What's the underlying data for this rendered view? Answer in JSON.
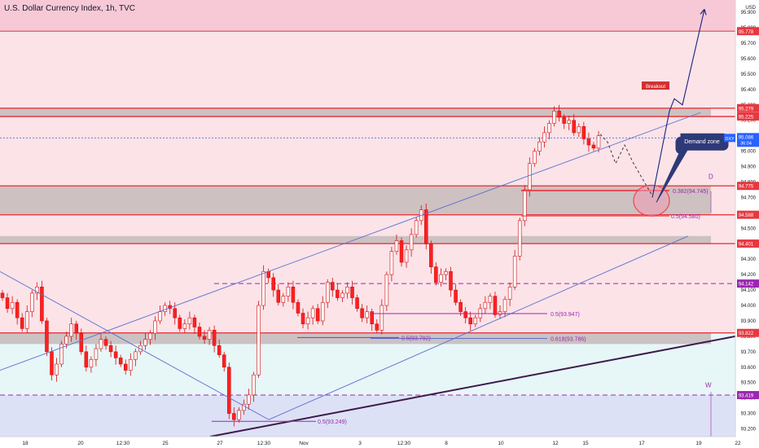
{
  "header": {
    "title": "U.S. Dollar Currency Index, 1h, TVC"
  },
  "colors": {
    "zone_pink": "#f7c9d7",
    "zone_light_pink": "#fbe3e8",
    "zone_gray": "#c8bcbd",
    "zone_blue": "#dde1f5",
    "zone_cyan": "#e7f6f7",
    "red_line": "#e8373f",
    "dark_red": "#8b1330",
    "purple": "#9c27b0",
    "blue_line": "#5b6fcf",
    "navy_line": "#3d1a4a",
    "candle_up": "#ffffff",
    "candle_down": "#ff2020",
    "candle_border": "#d01010",
    "text": "#131722"
  },
  "chart_data": {
    "type": "candlestick",
    "title": "U.S. Dollar Currency Index, 1h, TVC",
    "axis_currency": "USD",
    "ylim": [
      93.15,
      95.98
    ],
    "y_ticks": [
      "95.900",
      "95.800",
      "95.700",
      "95.600",
      "95.500",
      "95.400",
      "95.300",
      "95.200",
      "95.100",
      "95.000",
      "94.900",
      "94.800",
      "94.700",
      "94.600",
      "94.500",
      "94.400",
      "94.300",
      "94.200",
      "94.100",
      "94.000",
      "93.900",
      "93.800",
      "93.700",
      "93.600",
      "93.500",
      "93.400",
      "93.300",
      "93.200"
    ],
    "x_labels": [
      "18",
      "20",
      "12:30",
      "25",
      "27",
      "12:30",
      "Nov",
      "3",
      "12:30",
      "8",
      "10",
      "12",
      "15",
      "17",
      "19",
      "22"
    ],
    "price_tags": [
      {
        "label": "95.778",
        "value": 95.778,
        "kind": "red"
      },
      {
        "label": "95.279",
        "value": 95.279,
        "kind": "red"
      },
      {
        "label": "95.225",
        "value": 95.225,
        "kind": "red"
      },
      {
        "label": "94.775",
        "value": 94.775,
        "kind": "red"
      },
      {
        "label": "94.588",
        "value": 94.588,
        "kind": "red"
      },
      {
        "label": "94.401",
        "value": 94.401,
        "kind": "red"
      },
      {
        "label": "94.142",
        "value": 94.142,
        "kind": "purple"
      },
      {
        "label": "93.822",
        "value": 93.822,
        "kind": "red"
      },
      {
        "label": "93.419",
        "value": 93.419,
        "kind": "purple"
      }
    ],
    "current": {
      "symbol": "DXY",
      "price": "95.086",
      "countdown": "36:04",
      "value": 95.086
    },
    "zones": [
      {
        "name": "supply-zone",
        "from": 95.778,
        "to": 95.98,
        "color": "pink"
      },
      {
        "name": "upper-resistance",
        "from": 95.225,
        "to": 95.279,
        "color": "gray"
      },
      {
        "name": "demand-band",
        "from": 94.588,
        "to": 94.775,
        "color": "gray"
      },
      {
        "name": "mid-support",
        "from": 94.401,
        "to": 94.45,
        "color": "gray"
      },
      {
        "name": "low-support",
        "from": 93.75,
        "to": 93.822,
        "color": "gray"
      },
      {
        "name": "bottom-zone",
        "from": 93.15,
        "to": 93.419,
        "color": "blue"
      }
    ],
    "fib_labels": [
      {
        "text": "0.382(94.745)",
        "value": 94.745
      },
      {
        "text": "0.5(94.580)",
        "value": 94.58
      },
      {
        "text": "0.5(93.947)",
        "value": 93.947
      },
      {
        "text": "0.5(93.792)",
        "value": 93.792
      },
      {
        "text": "0.618(93.786)",
        "value": 93.786
      },
      {
        "text": "0.5(93.249)",
        "value": 93.249
      }
    ],
    "annotations": {
      "breakout": "Breakout",
      "demand": "Demand zone",
      "d_label": "D",
      "w_label": "W"
    },
    "series": [
      {
        "name": "DXY",
        "closes": [
          94.05,
          93.98,
          94.02,
          93.92,
          93.85,
          93.96,
          94.08,
          94.12,
          93.9,
          93.7,
          93.55,
          93.62,
          93.75,
          93.8,
          93.88,
          93.82,
          93.7,
          93.6,
          93.65,
          93.72,
          93.78,
          93.74,
          93.7,
          93.66,
          93.62,
          93.58,
          93.65,
          93.7,
          93.74,
          93.78,
          93.82,
          93.9,
          93.96,
          94.0,
          93.98,
          93.92,
          93.85,
          93.88,
          93.92,
          93.86,
          93.8,
          93.78,
          93.84,
          93.74,
          93.68,
          93.6,
          93.3,
          93.26,
          93.32,
          93.36,
          93.42,
          93.55,
          94.0,
          94.22,
          94.18,
          94.1,
          94.02,
          94.06,
          94.12,
          94.02,
          93.95,
          93.88,
          93.92,
          93.98,
          93.9,
          94.02,
          94.15,
          94.1,
          94.05,
          94.08,
          94.12,
          94.05,
          93.98,
          93.92,
          93.96,
          93.88,
          93.84,
          94.0,
          94.2,
          94.35,
          94.42,
          94.28,
          94.36,
          94.46,
          94.55,
          94.62,
          94.4,
          94.25,
          94.15,
          94.2,
          94.22,
          94.1,
          94.02,
          93.96,
          93.92,
          93.88,
          93.92,
          93.98,
          94.02,
          94.06,
          93.94,
          93.96,
          94.04,
          94.12,
          94.32,
          94.55,
          94.75,
          94.92,
          95.0,
          95.06,
          95.12,
          95.18,
          95.26,
          95.22,
          95.18,
          95.2,
          95.12,
          95.16,
          95.08,
          95.04,
          95.02,
          95.1
        ]
      }
    ]
  }
}
